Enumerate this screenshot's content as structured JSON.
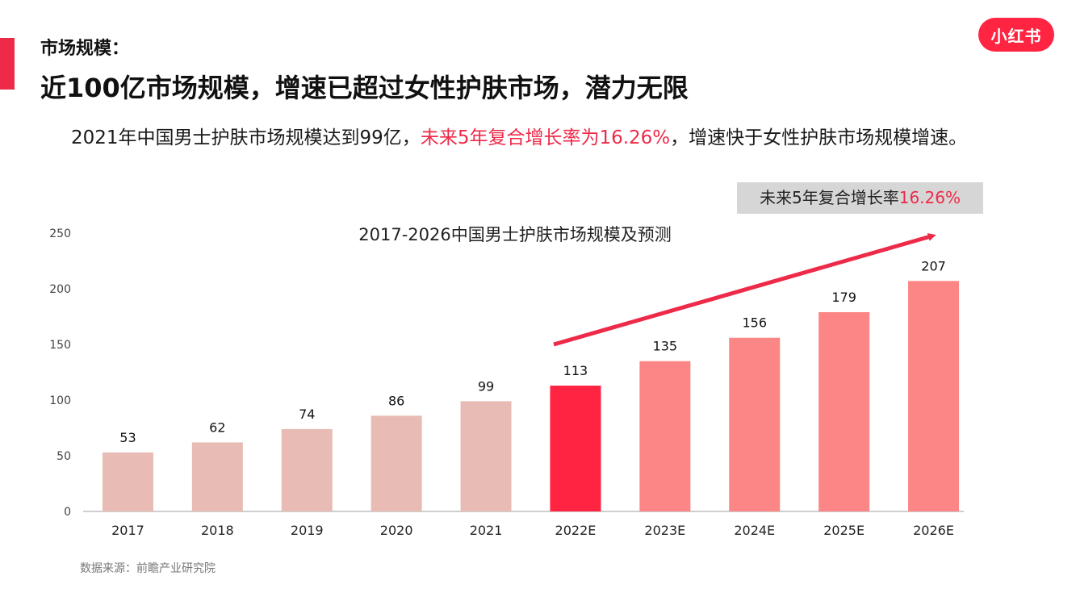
{
  "header": {
    "section_label": "市场规模：",
    "headline": "近100亿市场规模，增速已超过女性护肤市场，潜力无限"
  },
  "summary": {
    "part1": "2021年中国男士护肤市场规模达到99亿，",
    "highlight": "未来5年复合增长率为16.26%",
    "part2": "，增速快于女性护肤市场规模增速。"
  },
  "brand": {
    "logo_text": "小红书",
    "color": "#ff2442"
  },
  "cagr_box": {
    "label": "未来5年复合增长率",
    "value": "16.26%"
  },
  "source": "数据来源：前瞻产业研究院",
  "colors": {
    "accent": "#ee2a49",
    "historical": "#e8bcb4",
    "current": "#ff2442",
    "forecast": "#fc8585",
    "arrow": "#ee2a49"
  },
  "chart_data": {
    "type": "bar",
    "title": "2017-2026中国男士护肤市场规模及预测",
    "xlabel": "",
    "ylabel": "",
    "categories": [
      "2017",
      "2018",
      "2019",
      "2020",
      "2021",
      "2022E",
      "2023E",
      "2024E",
      "2025E",
      "2026E"
    ],
    "values": [
      53,
      62,
      74,
      86,
      99,
      113,
      135,
      156,
      179,
      207
    ],
    "bar_groups": [
      "historical",
      "historical",
      "historical",
      "historical",
      "historical",
      "current",
      "forecast",
      "forecast",
      "forecast",
      "forecast"
    ],
    "ylim": [
      0,
      250
    ],
    "yticks": [
      0,
      50,
      100,
      150,
      200,
      250
    ],
    "grid": false,
    "data_labels": true,
    "trend_arrow": true
  }
}
